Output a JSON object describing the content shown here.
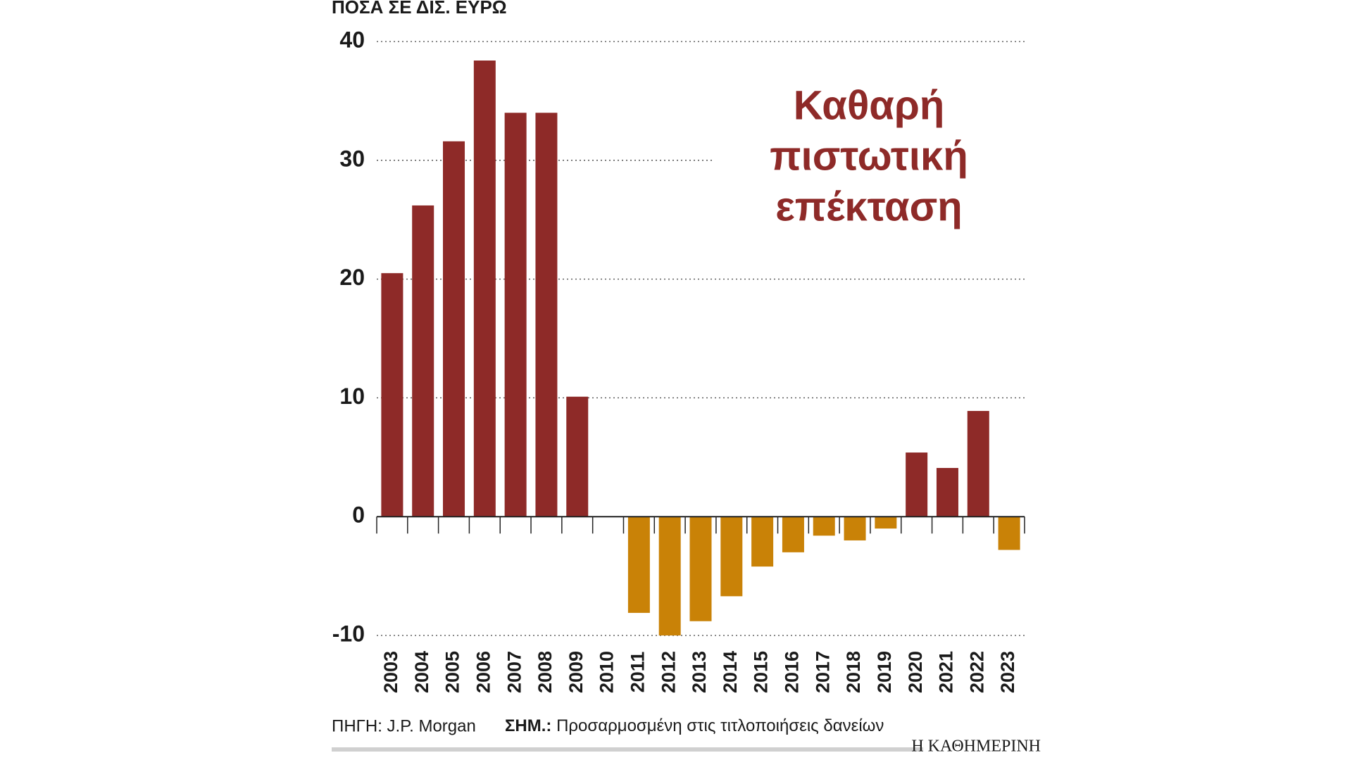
{
  "chart_data": {
    "type": "bar",
    "unit_label": "ΠΟΣΑ ΣΕ ΔΙΣ. ΕΥΡΩ",
    "title_lines": [
      "Καθαρή",
      "πιστωτική",
      "επέκταση"
    ],
    "categories": [
      "2003",
      "2004",
      "2005",
      "2006",
      "2007",
      "2008",
      "2009",
      "2010",
      "2011",
      "2012",
      "2013",
      "2014",
      "2015",
      "2016",
      "2017",
      "2018",
      "2019",
      "2020",
      "2021",
      "2022",
      "2023"
    ],
    "values": [
      20.5,
      26.2,
      31.6,
      38.4,
      34.0,
      34.0,
      10.1,
      0,
      -8.1,
      -10.0,
      -8.8,
      -6.7,
      -4.2,
      -3.0,
      -1.6,
      -2.0,
      -1.0,
      5.4,
      4.1,
      8.9,
      -2.8
    ],
    "positive_color": "#8e2a28",
    "negative_color": "#c98207",
    "ylim": [
      -10,
      40
    ],
    "yticks": [
      -10,
      0,
      10,
      20,
      30,
      40
    ],
    "grid": true,
    "source": "ΠΗΓΗ: J.P. Morgan",
    "note_label": "ΣΗΜ.:",
    "note": "Προσαρμοσμένη στις τιτλοποιήσεις δανείων",
    "brand": "Η ΚΑΘΗΜΕΡΙΝΗ"
  }
}
